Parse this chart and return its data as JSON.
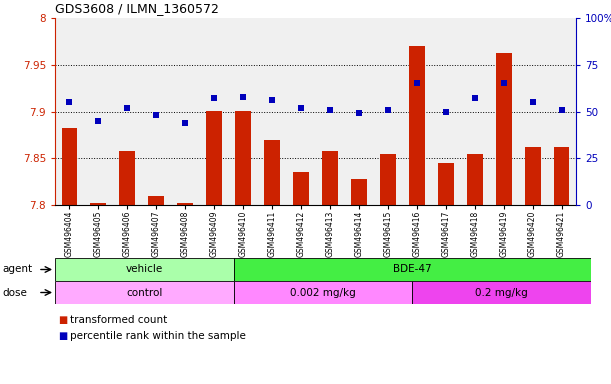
{
  "title": "GDS3608 / ILMN_1360572",
  "samples": [
    "GSM496404",
    "GSM496405",
    "GSM496406",
    "GSM496407",
    "GSM496408",
    "GSM496409",
    "GSM496410",
    "GSM496411",
    "GSM496412",
    "GSM496413",
    "GSM496414",
    "GSM496415",
    "GSM496416",
    "GSM496417",
    "GSM496418",
    "GSM496419",
    "GSM496420",
    "GSM496421"
  ],
  "bar_values": [
    7.882,
    7.802,
    7.858,
    7.81,
    7.802,
    7.9,
    7.9,
    7.87,
    7.835,
    7.858,
    7.828,
    7.855,
    7.97,
    7.845,
    7.855,
    7.963,
    7.862,
    7.862
  ],
  "percentile_values": [
    55,
    45,
    52,
    48,
    44,
    57,
    58,
    56,
    52,
    51,
    49,
    51,
    65,
    50,
    57,
    65,
    55,
    51
  ],
  "ylim": [
    7.8,
    8.0
  ],
  "yticks": [
    7.8,
    7.85,
    7.9,
    7.95,
    8.0
  ],
  "ytick_labels": [
    "7.8",
    "7.85",
    "7.9",
    "7.95",
    "8"
  ],
  "right_ylim": [
    0,
    100
  ],
  "right_yticks": [
    0,
    25,
    50,
    75,
    100
  ],
  "right_ytick_labels": [
    "0",
    "25",
    "50",
    "75",
    "100%"
  ],
  "bar_color": "#CC2200",
  "dot_color": "#0000BB",
  "bar_bottom": 7.8,
  "agent_groups": [
    {
      "label": "vehicle",
      "start": 0,
      "end": 6,
      "color": "#AAFFAA"
    },
    {
      "label": "BDE-47",
      "start": 6,
      "end": 18,
      "color": "#44EE44"
    }
  ],
  "dose_groups": [
    {
      "label": "control",
      "start": 0,
      "end": 6,
      "color": "#FFAAFF"
    },
    {
      "label": "0.002 mg/kg",
      "start": 6,
      "end": 12,
      "color": "#FF88FF"
    },
    {
      "label": "0.2 mg/kg",
      "start": 12,
      "end": 18,
      "color": "#EE44EE"
    }
  ],
  "legend_items": [
    {
      "label": "transformed count",
      "color": "#CC2200"
    },
    {
      "label": "percentile rank within the sample",
      "color": "#0000BB"
    }
  ],
  "grid_yticks": [
    7.85,
    7.9,
    7.95
  ],
  "tick_label_fontsize": 7.5,
  "title_fontsize": 9,
  "bg_color": "#FFFFFF"
}
